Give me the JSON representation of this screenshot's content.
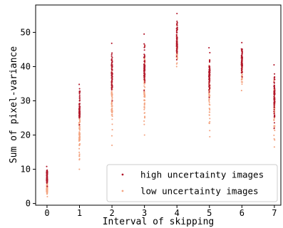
{
  "chart_data": {
    "type": "scatter",
    "xlabel": "Interval of skipping",
    "ylabel": "Sum of pixel-variance",
    "xlim": [
      -0.35,
      7.2
    ],
    "ylim": [
      -0.5,
      58
    ],
    "x_ticks": [
      0,
      1,
      2,
      3,
      4,
      5,
      6,
      7
    ],
    "x_tick_labels": [
      "0",
      "1",
      "2",
      "3",
      "4",
      "5",
      "6",
      "7"
    ],
    "y_ticks": [
      0,
      10,
      20,
      30,
      40,
      50
    ],
    "y_tick_labels": [
      "0",
      "10",
      "20",
      "30",
      "40",
      "50"
    ],
    "grid": false,
    "legend_position": "lower-right",
    "series": [
      {
        "name": "high uncertainty images",
        "color": "#b2182b",
        "marker": "dot",
        "x": [
          0,
          1,
          2,
          3,
          4,
          5,
          6,
          7
        ],
        "y_min": [
          5.0,
          23.0,
          30.0,
          33.0,
          42.0,
          31.0,
          37.0,
          22.0
        ],
        "y_max": [
          10.8,
          34.8,
          46.8,
          49.5,
          55.5,
          45.5,
          47.0,
          40.5
        ],
        "y_center": [
          7.5,
          27.0,
          38.0,
          39.5,
          47.0,
          38.0,
          41.5,
          32.0
        ]
      },
      {
        "name": "low uncertainty images",
        "color": "#f4a582",
        "marker": "dot",
        "x": [
          0,
          1,
          2,
          3,
          4,
          5,
          6,
          7
        ],
        "y_min": [
          2.0,
          10.0,
          17.0,
          20.0,
          40.0,
          19.5,
          33.0,
          16.5
        ],
        "y_max": [
          8.0,
          30.0,
          42.0,
          46.0,
          52.0,
          42.0,
          44.5,
          37.0
        ],
        "y_center": [
          4.0,
          22.0,
          31.0,
          33.0,
          45.5,
          33.0,
          39.5,
          29.0
        ]
      }
    ]
  }
}
